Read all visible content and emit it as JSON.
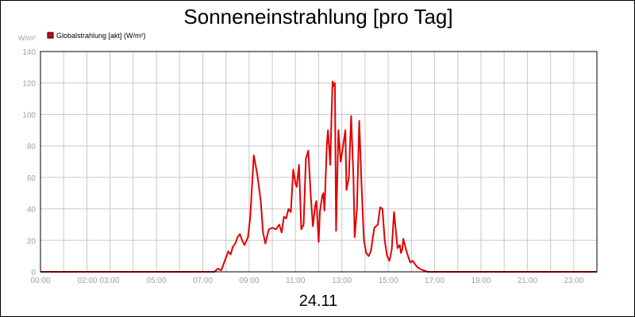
{
  "chart_data": {
    "type": "line",
    "title": "Sonneneinstrahlung [pro Tag]",
    "ylabel": "W/m²",
    "xlabel": "24.11",
    "ylim": [
      0,
      140
    ],
    "yticks": [
      "0",
      "20",
      "40",
      "60",
      "80",
      "100",
      "120",
      "140"
    ],
    "xlim": [
      0,
      24
    ],
    "xticks": [
      {
        "h": 0,
        "label": "00:00"
      },
      {
        "h": 2.5,
        "label": "02:00 03:00"
      },
      {
        "h": 5,
        "label": "05:00"
      },
      {
        "h": 7,
        "label": "07:00"
      },
      {
        "h": 9,
        "label": "09:00"
      },
      {
        "h": 11,
        "label": "11:00"
      },
      {
        "h": 13,
        "label": "13:00"
      },
      {
        "h": 15,
        "label": "15:00"
      },
      {
        "h": 17,
        "label": "17:00"
      },
      {
        "h": 19,
        "label": "19:00"
      },
      {
        "h": 21,
        "label": "21:00"
      },
      {
        "h": 23,
        "label": "23:00"
      }
    ],
    "grid": true,
    "legend_position": "top-left",
    "series": [
      {
        "name": "Globalstrahlung [akt] (W/m²)",
        "color": "#e00000",
        "x": [
          0,
          7.5,
          7.65,
          7.8,
          7.95,
          8.1,
          8.2,
          8.3,
          8.4,
          8.5,
          8.6,
          8.7,
          8.8,
          8.95,
          9.05,
          9.2,
          9.35,
          9.5,
          9.6,
          9.7,
          9.85,
          10.0,
          10.15,
          10.3,
          10.4,
          10.5,
          10.6,
          10.7,
          10.8,
          10.9,
          11.0,
          11.05,
          11.15,
          11.25,
          11.35,
          11.45,
          11.55,
          11.65,
          11.75,
          11.85,
          11.9,
          12.0,
          12.05,
          12.15,
          12.2,
          12.25,
          12.35,
          12.4,
          12.5,
          12.55,
          12.6,
          12.65,
          12.7,
          12.75,
          12.85,
          12.95,
          13.05,
          13.15,
          13.2,
          13.3,
          13.4,
          13.5,
          13.55,
          13.65,
          13.75,
          13.85,
          13.95,
          14.05,
          14.15,
          14.25,
          14.4,
          14.55,
          14.65,
          14.75,
          14.85,
          14.95,
          15.05,
          15.15,
          15.25,
          15.4,
          15.5,
          15.55,
          15.6,
          15.65,
          15.75,
          15.85,
          15.95,
          16.05,
          16.15,
          16.25,
          16.35,
          16.5,
          16.7,
          17.0,
          24
        ],
        "values": [
          0,
          0,
          2,
          1,
          7,
          13,
          11,
          16,
          18,
          22,
          24,
          20,
          17,
          22,
          35,
          74,
          62,
          45,
          25,
          18,
          27,
          28,
          27,
          30,
          25,
          35,
          34,
          40,
          38,
          65,
          56,
          54,
          68,
          27,
          30,
          72,
          77,
          50,
          29,
          42,
          45,
          19,
          38,
          48,
          50,
          39,
          80,
          90,
          68,
          98,
          121,
          118,
          120,
          26,
          90,
          70,
          80,
          90,
          52,
          60,
          99,
          60,
          22,
          40,
          96,
          55,
          20,
          12,
          10,
          13,
          28,
          30,
          41,
          40,
          20,
          10,
          7,
          14,
          38,
          15,
          17,
          12,
          14,
          21,
          15,
          10,
          6,
          7,
          5,
          3,
          2,
          1,
          0,
          0,
          0
        ]
      }
    ]
  }
}
